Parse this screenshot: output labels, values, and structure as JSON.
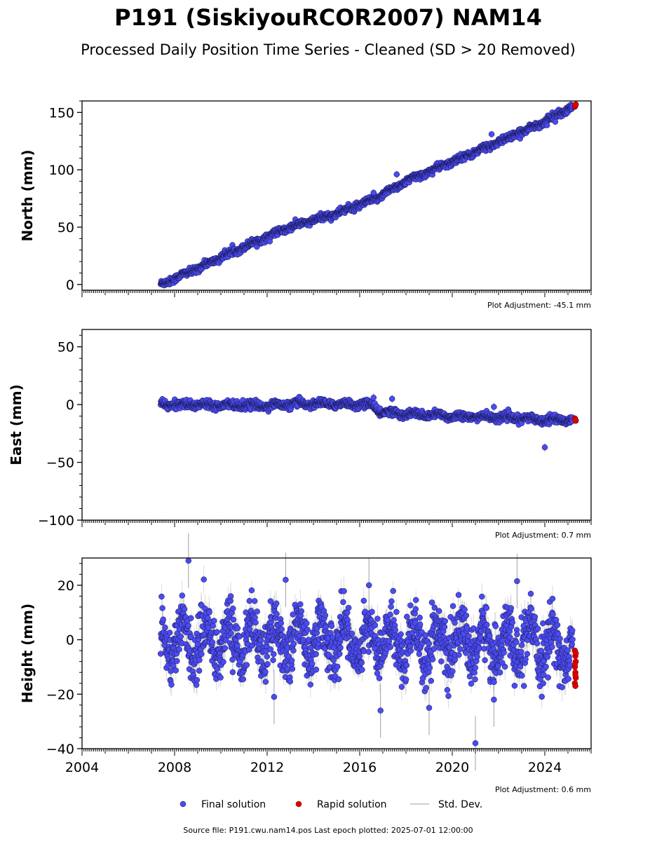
{
  "page": {
    "title": "P191 (SiskiyouRCOR2007) NAM14",
    "subtitle": "Processed Daily Position Time Series - Cleaned (SD > 20 Removed)",
    "source": "Source file: P191.cwu.nam14.pos  Last epoch plotted: 2025-07-01 12:00:00"
  },
  "legend": {
    "final": "Final solution",
    "rapid": "Rapid solution",
    "std": "Std. Dev."
  },
  "colors": {
    "final_fill": "#4b4bf0",
    "final_edge": "#15154a",
    "rapid": "#e00000",
    "std": "#a0a0a0"
  },
  "chart_data": [
    {
      "type": "scatter",
      "ylabel": "North (mm)",
      "adjustment": "Plot Adjustment: -45.1 mm",
      "xlim": [
        2004,
        2026
      ],
      "ylim": [
        -5,
        160
      ],
      "yticks": [
        0,
        50,
        100,
        150
      ],
      "start": 2007.4,
      "end": 2025.2,
      "trend": [
        {
          "t": 2007.4,
          "v": 0
        },
        {
          "t": 2009.0,
          "v": 14
        },
        {
          "t": 2011.0,
          "v": 33
        },
        {
          "t": 2013.0,
          "v": 50
        },
        {
          "t": 2015.0,
          "v": 62
        },
        {
          "t": 2016.5,
          "v": 73
        },
        {
          "t": 2018.0,
          "v": 90
        },
        {
          "t": 2020.0,
          "v": 107
        },
        {
          "t": 2022.0,
          "v": 124
        },
        {
          "t": 2024.0,
          "v": 142
        },
        {
          "t": 2025.3,
          "v": 156
        }
      ],
      "noise": 1.5,
      "seasonal": 0.8,
      "sd": 1.2,
      "outliers": [
        {
          "t": 2017.6,
          "v": 96
        },
        {
          "t": 2021.7,
          "v": 131
        },
        {
          "t": 2016.6,
          "v": 80
        }
      ],
      "rapid_values": [
        155,
        156,
        157,
        155.5,
        156.5
      ]
    },
    {
      "type": "scatter",
      "ylabel": "East (mm)",
      "adjustment": "Plot Adjustment: 0.7 mm",
      "xlim": [
        2004,
        2026
      ],
      "ylim": [
        -100,
        65
      ],
      "yticks": [
        -100,
        -50,
        0,
        50
      ],
      "start": 2007.4,
      "end": 2025.2,
      "trend": [
        {
          "t": 2007.4,
          "v": 0
        },
        {
          "t": 2010.0,
          "v": 0
        },
        {
          "t": 2012.0,
          "v": -1
        },
        {
          "t": 2013.5,
          "v": 1
        },
        {
          "t": 2016.5,
          "v": 0
        },
        {
          "t": 2016.8,
          "v": -6
        },
        {
          "t": 2018.0,
          "v": -8
        },
        {
          "t": 2020.0,
          "v": -10
        },
        {
          "t": 2022.0,
          "v": -11
        },
        {
          "t": 2024.0,
          "v": -13
        },
        {
          "t": 2025.3,
          "v": -13
        }
      ],
      "noise": 1.6,
      "seasonal": 1.3,
      "sd": 1.5,
      "outliers": [
        {
          "t": 2024.0,
          "v": -37
        },
        {
          "t": 2017.4,
          "v": 5
        },
        {
          "t": 2021.8,
          "v": -2
        },
        {
          "t": 2016.6,
          "v": 6
        }
      ],
      "rapid_values": [
        -12,
        -13,
        -14,
        -12.5,
        -13.5
      ]
    },
    {
      "type": "scatter",
      "ylabel": "Height (mm)",
      "adjustment": "Plot Adjustment: 0.6 mm",
      "xlim": [
        2004,
        2026
      ],
      "ylim": [
        -40,
        30
      ],
      "yticks": [
        -40,
        -20,
        0,
        20
      ],
      "xticks": [
        2004,
        2008,
        2012,
        2016,
        2020,
        2024
      ],
      "start": 2007.4,
      "end": 2025.2,
      "trend": [
        {
          "t": 2007.4,
          "v": 0
        },
        {
          "t": 2016.0,
          "v": 0
        },
        {
          "t": 2020.0,
          "v": -1
        },
        {
          "t": 2024.0,
          "v": -2
        },
        {
          "t": 2025.3,
          "v": -4
        }
      ],
      "noise": 5.0,
      "seasonal": 6.5,
      "sd": 4.0,
      "outliers": [
        {
          "t": 2008.6,
          "v": 29
        },
        {
          "t": 2021.0,
          "v": -38
        },
        {
          "t": 2021.8,
          "v": -22
        },
        {
          "t": 2016.9,
          "v": -26
        },
        {
          "t": 2019.0,
          "v": -25
        },
        {
          "t": 2012.3,
          "v": -21
        },
        {
          "t": 2022.8,
          "v": 21.5
        },
        {
          "t": 2012.8,
          "v": 22
        },
        {
          "t": 2016.4,
          "v": 20
        }
      ],
      "rapid_values": [
        -4,
        -6,
        -8,
        -10,
        -12,
        -14,
        -16,
        -17,
        -5,
        -9,
        -13
      ]
    }
  ]
}
